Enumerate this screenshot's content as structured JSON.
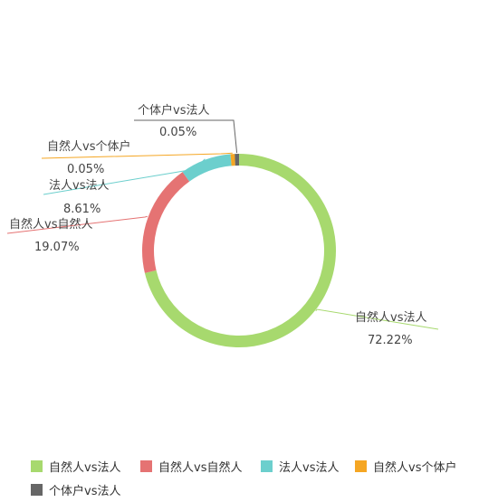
{
  "chart_data": {
    "type": "pie",
    "donut": true,
    "series": [
      {
        "name": "自然人vs法人",
        "value": 72.22,
        "label": "72.22%",
        "color": "#a7d96e"
      },
      {
        "name": "自然人vs自然人",
        "value": 19.07,
        "label": "19.07%",
        "color": "#e57373"
      },
      {
        "name": "法人vs法人",
        "value": 8.61,
        "label": "8.61%",
        "color": "#6ccfcd"
      },
      {
        "name": "自然人vs个体户",
        "value": 0.05,
        "label": "0.05%",
        "color": "#f5a623"
      },
      {
        "name": "个体户vs法人",
        "value": 0.05,
        "label": "0.05%",
        "color": "#666666"
      }
    ],
    "legend_position": "bottom"
  }
}
